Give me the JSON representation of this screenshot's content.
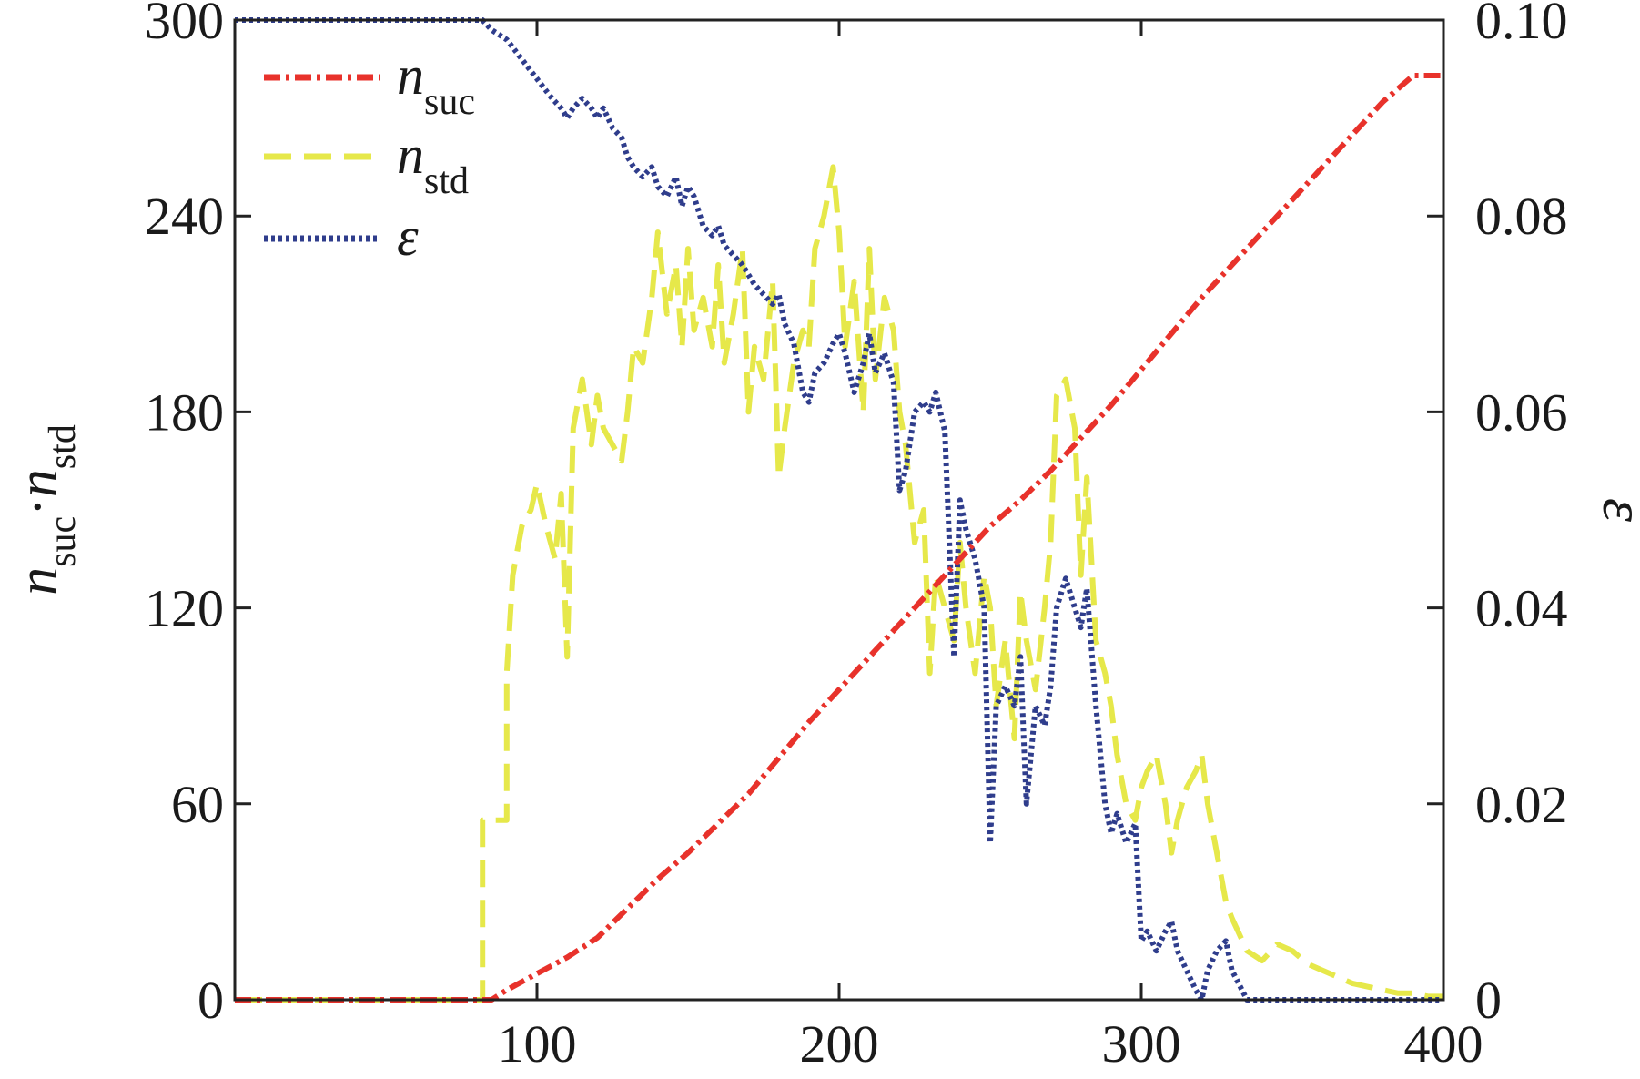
{
  "colors": {
    "n_suc": "#e8322b",
    "n_std": "#e6e84a",
    "epsilon": "#2f3d8c",
    "axis": "#222222"
  },
  "chart_data": {
    "type": "line",
    "title": "",
    "xlabel": "",
    "ylabel_left": {
      "base": "n",
      "sub1": "suc",
      "sep": "·",
      "base2": "n",
      "sub2": "std"
    },
    "ylabel_right": "ε",
    "xlim": [
      0,
      400
    ],
    "ylim_left": [
      0,
      300
    ],
    "ylim_right": [
      0,
      0.1
    ],
    "x_ticks": [
      100,
      200,
      300,
      400
    ],
    "y_ticks_left": [
      0,
      60,
      120,
      180,
      240,
      300
    ],
    "y_ticks_right": [
      "0",
      "0.02",
      "0.04",
      "0.06",
      "0.08",
      "0.10"
    ],
    "legend_position": "top-left",
    "grid": false,
    "series": [
      {
        "name": "n_suc",
        "label_base": "n",
        "label_sub": "suc",
        "axis": "left",
        "style": "dash-dot",
        "x": [
          0,
          80,
          85,
          90,
          100,
          110,
          120,
          130,
          140,
          150,
          160,
          170,
          180,
          190,
          200,
          210,
          220,
          230,
          240,
          250,
          260,
          270,
          280,
          290,
          300,
          310,
          320,
          330,
          340,
          350,
          360,
          370,
          380,
          390,
          400
        ],
        "y": [
          0,
          0,
          0,
          3,
          8,
          13,
          19,
          28,
          37,
          45,
          54,
          63,
          74,
          85,
          95,
          105,
          115,
          125,
          135,
          145,
          153,
          162,
          172,
          182,
          193,
          204,
          215,
          225,
          235,
          245,
          255,
          265,
          275,
          283,
          283
        ]
      },
      {
        "name": "n_std",
        "label_base": "n",
        "label_sub": "std",
        "axis": "left",
        "style": "dashed",
        "x": [
          0,
          82,
          82,
          90,
          90,
          92,
          95,
          98,
          100,
          103,
          106,
          108,
          110,
          112,
          115,
          118,
          120,
          122,
          125,
          128,
          130,
          132,
          135,
          138,
          140,
          143,
          146,
          148,
          150,
          152,
          155,
          158,
          160,
          162,
          165,
          168,
          170,
          172,
          175,
          178,
          180,
          182,
          185,
          188,
          190,
          192,
          195,
          198,
          200,
          202,
          205,
          208,
          210,
          212,
          215,
          218,
          220,
          222,
          225,
          228,
          230,
          232,
          235,
          238,
          240,
          242,
          245,
          248,
          250,
          252,
          255,
          258,
          260,
          262,
          265,
          268,
          270,
          272,
          275,
          278,
          280,
          282,
          285,
          288,
          290,
          292,
          295,
          298,
          300,
          302,
          305,
          308,
          310,
          312,
          315,
          318,
          320,
          322,
          325,
          328,
          330,
          335,
          340,
          345,
          350,
          355,
          360,
          365,
          370,
          375,
          380,
          385,
          390,
          395,
          400
        ],
        "y": [
          0,
          0,
          55,
          55,
          100,
          130,
          145,
          150,
          158,
          145,
          135,
          155,
          105,
          175,
          190,
          170,
          185,
          175,
          170,
          165,
          180,
          200,
          195,
          215,
          235,
          210,
          225,
          200,
          230,
          205,
          215,
          200,
          225,
          195,
          210,
          230,
          180,
          200,
          190,
          220,
          160,
          175,
          195,
          205,
          200,
          230,
          240,
          255,
          235,
          200,
          220,
          180,
          230,
          190,
          215,
          205,
          180,
          170,
          140,
          150,
          100,
          130,
          120,
          110,
          140,
          120,
          100,
          130,
          120,
          90,
          110,
          80,
          125,
          110,
          95,
          120,
          140,
          185,
          190,
          175,
          130,
          160,
          110,
          100,
          90,
          75,
          60,
          55,
          65,
          70,
          75,
          60,
          45,
          55,
          65,
          70,
          75,
          60,
          45,
          30,
          25,
          15,
          12,
          17,
          15,
          11,
          9,
          7,
          5,
          4,
          3,
          2,
          2,
          1,
          1
        ],
        "x_note": "",
        "y_note": ""
      },
      {
        "name": "epsilon",
        "label_base": "ε",
        "label_sub": "",
        "axis": "right",
        "style": "dotted",
        "x": [
          0,
          82,
          85,
          90,
          95,
          100,
          105,
          108,
          110,
          112,
          115,
          118,
          120,
          122,
          125,
          128,
          130,
          132,
          135,
          138,
          140,
          143,
          146,
          148,
          150,
          152,
          155,
          158,
          160,
          162,
          165,
          168,
          170,
          172,
          175,
          178,
          180,
          182,
          185,
          188,
          190,
          192,
          195,
          198,
          200,
          202,
          205,
          208,
          210,
          212,
          215,
          218,
          220,
          222,
          225,
          228,
          230,
          232,
          235,
          238,
          240,
          242,
          245,
          248,
          250,
          252,
          255,
          258,
          260,
          262,
          265,
          268,
          270,
          272,
          275,
          278,
          280,
          282,
          285,
          288,
          290,
          292,
          295,
          298,
          300,
          302,
          305,
          308,
          310,
          312,
          315,
          318,
          320,
          322,
          325,
          328,
          330,
          335,
          340,
          345,
          350,
          360,
          370,
          380,
          390,
          400
        ],
        "y": [
          0.1,
          0.1,
          0.099,
          0.098,
          0.096,
          0.094,
          0.092,
          0.091,
          0.09,
          0.091,
          0.092,
          0.091,
          0.09,
          0.091,
          0.089,
          0.088,
          0.086,
          0.085,
          0.084,
          0.085,
          0.083,
          0.082,
          0.084,
          0.081,
          0.083,
          0.082,
          0.079,
          0.078,
          0.079,
          0.077,
          0.076,
          0.075,
          0.074,
          0.073,
          0.072,
          0.071,
          0.072,
          0.069,
          0.067,
          0.062,
          0.061,
          0.064,
          0.065,
          0.067,
          0.068,
          0.066,
          0.062,
          0.065,
          0.068,
          0.064,
          0.066,
          0.063,
          0.052,
          0.054,
          0.06,
          0.061,
          0.06,
          0.062,
          0.058,
          0.035,
          0.051,
          0.048,
          0.045,
          0.04,
          0.016,
          0.03,
          0.032,
          0.03,
          0.035,
          0.02,
          0.03,
          0.028,
          0.032,
          0.04,
          0.043,
          0.04,
          0.038,
          0.042,
          0.03,
          0.02,
          0.017,
          0.019,
          0.016,
          0.018,
          0.006,
          0.007,
          0.005,
          0.007,
          0.008,
          0.005,
          0.003,
          0.001,
          0.0,
          0.003,
          0.005,
          0.006,
          0.003,
          0.0,
          0.0,
          0.0,
          0.0,
          0.0,
          0.0,
          0.0,
          0.0,
          0.0
        ]
      }
    ]
  }
}
